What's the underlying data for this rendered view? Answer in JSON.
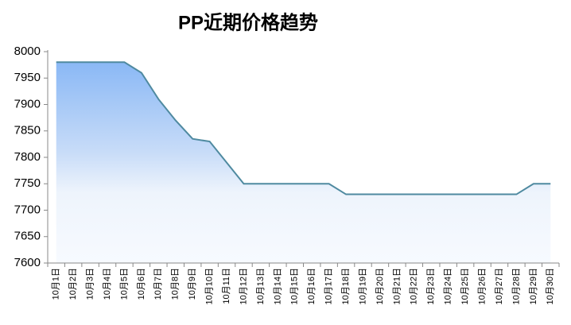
{
  "chart_data": {
    "type": "area",
    "title": "PP近期价格趋势",
    "categories": [
      "10月1日",
      "10月2日",
      "10月3日",
      "10月4日",
      "10月5日",
      "10月6日",
      "10月7日",
      "10月8日",
      "10月9日",
      "10月10日",
      "10月11日",
      "10月12日",
      "10月13日",
      "10月14日",
      "10月15日",
      "10月16日",
      "10月17日",
      "10月18日",
      "10月19日",
      "10月20日",
      "10月21日",
      "10月22日",
      "10月23日",
      "10月24日",
      "10月25日",
      "10月26日",
      "10月27日",
      "10月28日",
      "10月29日",
      "10月30日"
    ],
    "values": [
      7980,
      7980,
      7980,
      7980,
      7980,
      7960,
      7910,
      7870,
      7835,
      7830,
      7790,
      7750,
      7750,
      7750,
      7750,
      7750,
      7750,
      7730,
      7730,
      7730,
      7730,
      7730,
      7730,
      7730,
      7730,
      7730,
      7730,
      7730,
      7750,
      7750
    ],
    "color": "#4f8aa0",
    "area_color": "#8ab8f5",
    "ylim": [
      7600,
      8000
    ],
    "yticks": [
      7600,
      7650,
      7700,
      7750,
      7800,
      7850,
      7900,
      7950,
      8000
    ]
  }
}
